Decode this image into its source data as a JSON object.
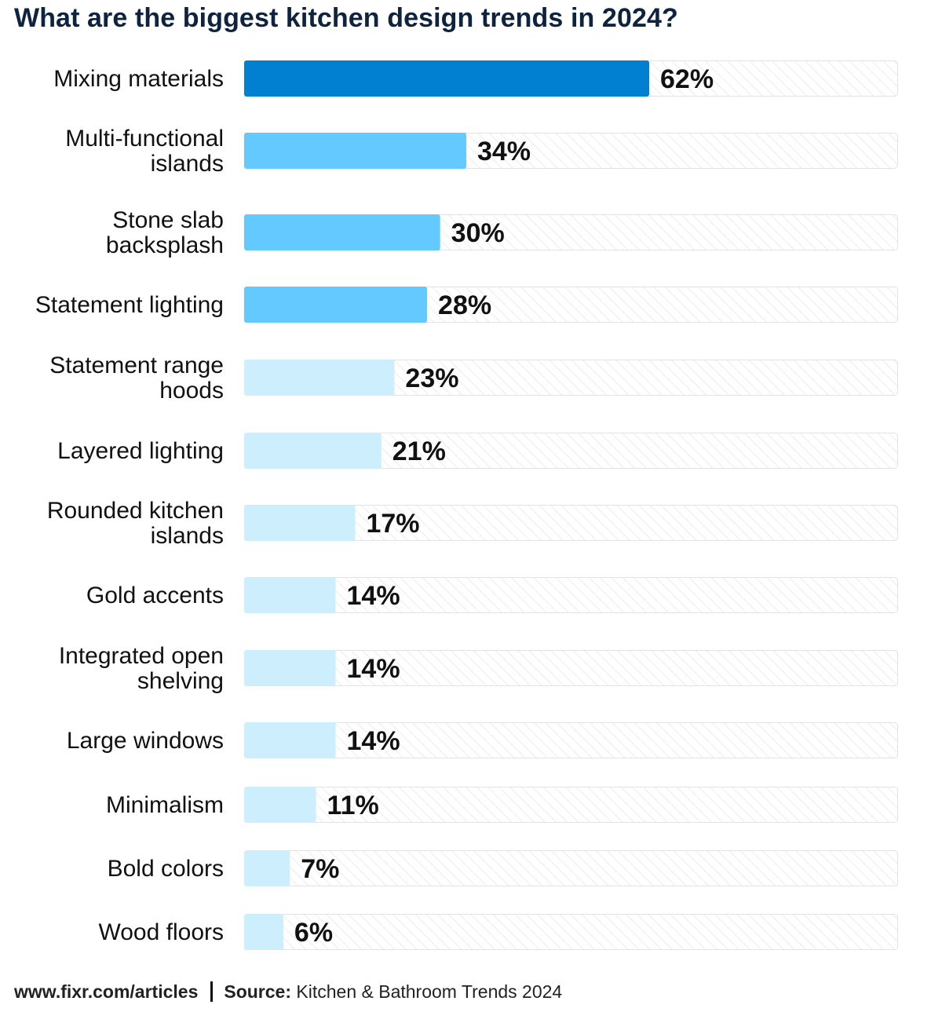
{
  "chart_data": {
    "type": "bar",
    "orientation": "horizontal",
    "title": "What are the biggest kitchen design trends in 2024?",
    "categories": [
      "Mixing materials",
      "Multi-functional islands",
      "Stone slab backsplash",
      "Statement lighting",
      "Statement range hoods",
      "Layered lighting",
      "Rounded kitchen islands",
      "Gold accents",
      "Integrated open shelving",
      "Large windows",
      "Minimalism",
      "Bold colors",
      "Wood floors"
    ],
    "category_lines": [
      [
        "Mixing materials"
      ],
      [
        "Multi-functional",
        "islands"
      ],
      [
        "Stone slab",
        "backsplash"
      ],
      [
        "Statement lighting"
      ],
      [
        "Statement range",
        "hoods"
      ],
      [
        "Layered lighting"
      ],
      [
        "Rounded kitchen",
        "islands"
      ],
      [
        "Gold accents"
      ],
      [
        "Integrated open",
        "shelving"
      ],
      [
        "Large windows"
      ],
      [
        "Minimalism"
      ],
      [
        "Bold colors"
      ],
      [
        "Wood floors"
      ]
    ],
    "values": [
      62,
      34,
      30,
      28,
      23,
      21,
      17,
      14,
      14,
      14,
      11,
      7,
      6
    ],
    "value_labels": [
      "62%",
      "34%",
      "30%",
      "28%",
      "23%",
      "21%",
      "17%",
      "14%",
      "14%",
      "14%",
      "11%",
      "7%",
      "6%"
    ],
    "xlim": [
      0,
      100
    ],
    "grid": false,
    "colors": {
      "tier1": "#0180d1",
      "tier2": "#63c9ff",
      "tier3": "#cceefd",
      "track_stroke": "#e3e3e3",
      "hatch": "#ececec"
    },
    "color_tiers": [
      1,
      2,
      2,
      2,
      3,
      3,
      3,
      3,
      3,
      3,
      3,
      3,
      3
    ]
  },
  "footer": {
    "url": "www.fixr.com/articles",
    "source_label": "Source:",
    "source_text": "Kitchen & Bathroom Trends 2024"
  }
}
